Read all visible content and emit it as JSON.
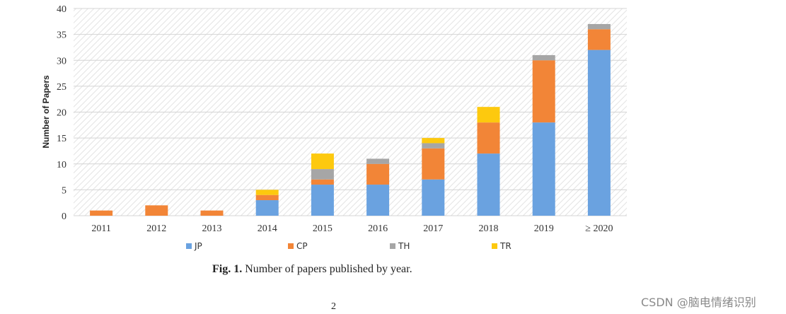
{
  "chart_data": {
    "type": "bar",
    "stacked": true,
    "title": "",
    "xlabel": "",
    "ylabel": "Number of Papers",
    "ylim": [
      0,
      40
    ],
    "yticks": [
      0,
      5,
      10,
      15,
      20,
      25,
      30,
      35,
      40
    ],
    "categories": [
      "2011",
      "2012",
      "2013",
      "2014",
      "2015",
      "2016",
      "2017",
      "2018",
      "2019",
      "≥ 2020"
    ],
    "series": [
      {
        "name": "JP",
        "color": "#6aa2e0",
        "values": [
          0,
          0,
          0,
          3,
          6,
          6,
          7,
          12,
          18,
          32
        ]
      },
      {
        "name": "CP",
        "color": "#f28537",
        "values": [
          1,
          2,
          1,
          1,
          1,
          4,
          6,
          6,
          12,
          4
        ]
      },
      {
        "name": "TH",
        "color": "#a6a6a6",
        "values": [
          0,
          0,
          0,
          0,
          2,
          1,
          1,
          0,
          1,
          1
        ]
      },
      {
        "name": "TR",
        "color": "#fdc90e",
        "values": [
          0,
          0,
          0,
          1,
          3,
          0,
          1,
          3,
          0,
          0
        ]
      }
    ],
    "grid": true,
    "legend": "bottom"
  },
  "caption": {
    "label": "Fig. 1.",
    "text": "Number of papers published by year."
  },
  "page_number": "2",
  "watermark": "CSDN @脑电情绪识别"
}
